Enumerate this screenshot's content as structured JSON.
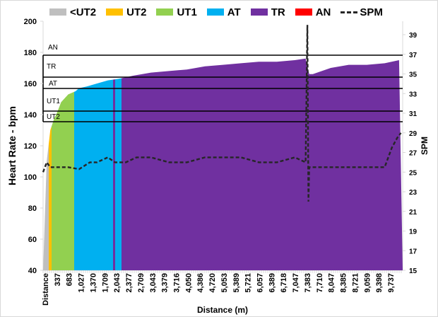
{
  "chart_data": {
    "type": "area",
    "title": "",
    "xlabel": "Distance (m)",
    "ylabel": "Heart Rate - bpm",
    "y2label": "SPM",
    "ylim": [
      40,
      200
    ],
    "y2lim": [
      15,
      40
    ],
    "grid": false,
    "legend_position": "top",
    "yticks": [
      "200",
      "180",
      "160",
      "140",
      "120",
      "100",
      "80",
      "60",
      "40"
    ],
    "y2ticks": [
      "39",
      "37",
      "35",
      "33",
      "31",
      "29",
      "27",
      "25",
      "23",
      "21",
      "19",
      "17",
      "15"
    ],
    "xticks": [
      "Distance",
      "337",
      "683",
      "1,027",
      "1,370",
      "1,709",
      "2,043",
      "2,377",
      "2,709",
      "3,043",
      "3,379",
      "3,716",
      "4,050",
      "4,386",
      "4,720",
      "5,053",
      "5,389",
      "5,721",
      "6,057",
      "6,389",
      "6,718",
      "7,047",
      "7,383",
      "7,710",
      "8,047",
      "8,385",
      "8,721",
      "9,059",
      "9,398",
      "9,737"
    ],
    "legend": [
      {
        "label": "<UT2",
        "color": "#bfbfbf",
        "kind": "area"
      },
      {
        "label": "UT2",
        "color": "#ffc000",
        "kind": "area"
      },
      {
        "label": "UT1",
        "color": "#92d050",
        "kind": "area"
      },
      {
        "label": "AT",
        "color": "#00b0f0",
        "kind": "area"
      },
      {
        "label": "TR",
        "color": "#7030a0",
        "kind": "area"
      },
      {
        "label": "AN",
        "color": "#ff0000",
        "kind": "area"
      },
      {
        "label": "SPM",
        "color": "#262626",
        "kind": "dashed-line"
      }
    ],
    "zone_thresholds": [
      {
        "label": "AN",
        "bpm": 178
      },
      {
        "label": "TR",
        "bpm": 164
      },
      {
        "label": "AT",
        "bpm": 157
      },
      {
        "label": "UT1",
        "bpm": 142
      },
      {
        "label": "UT2",
        "bpm": 135
      }
    ],
    "zone_bands_by_distance": [
      {
        "zone": "<UT2",
        "from_m": 0,
        "to_m": 250
      },
      {
        "zone": "UT2",
        "from_m": 250,
        "to_m": 370
      },
      {
        "zone": "UT1",
        "from_m": 370,
        "to_m": 1000
      },
      {
        "zone": "AT",
        "from_m": 1000,
        "to_m": 2030
      },
      {
        "zone": "TR",
        "from_m": 2030,
        "to_m": 2090
      },
      {
        "zone": "AT",
        "from_m": 2090,
        "to_m": 2270
      },
      {
        "zone": "TR",
        "from_m": 2270,
        "to_m": 10000
      }
    ],
    "series": [
      {
        "name": "Heart Rate",
        "axis": "left",
        "x": [
          0,
          100,
          200,
          300,
          400,
          500,
          700,
          900,
          1000,
          1200,
          1500,
          1800,
          2100,
          2300,
          2500,
          3000,
          3500,
          4000,
          4500,
          5000,
          5500,
          6000,
          6500,
          7000,
          7300,
          7400,
          7500,
          8000,
          8500,
          9000,
          9500,
          9900
        ],
        "values": [
          40,
          110,
          130,
          137,
          142,
          148,
          153,
          155,
          157,
          158,
          160,
          162,
          163,
          164,
          165,
          167,
          168,
          169,
          171,
          172,
          173,
          174,
          174,
          175,
          176,
          166,
          166,
          170,
          172,
          172,
          173,
          175
        ]
      },
      {
        "name": "SPM",
        "axis": "right",
        "x": [
          0,
          100,
          200,
          400,
          700,
          1000,
          1300,
          1500,
          1800,
          2000,
          2100,
          2300,
          2600,
          3000,
          3500,
          4000,
          4500,
          5000,
          5500,
          6000,
          6500,
          7000,
          7300,
          7350,
          7380,
          7400,
          7500,
          8000,
          8500,
          9000,
          9300,
          9500,
          9700,
          9850,
          9950
        ],
        "values": [
          25,
          26,
          25.5,
          25.5,
          25.5,
          25.3,
          26,
          26,
          26.5,
          26,
          26,
          26,
          26.5,
          26.5,
          26,
          26,
          26.5,
          26.5,
          26.5,
          26,
          26,
          26.5,
          26,
          40,
          22,
          25.5,
          25.5,
          25.5,
          25.5,
          25.5,
          25.5,
          25.5,
          27.5,
          28.5,
          29
        ]
      }
    ]
  }
}
